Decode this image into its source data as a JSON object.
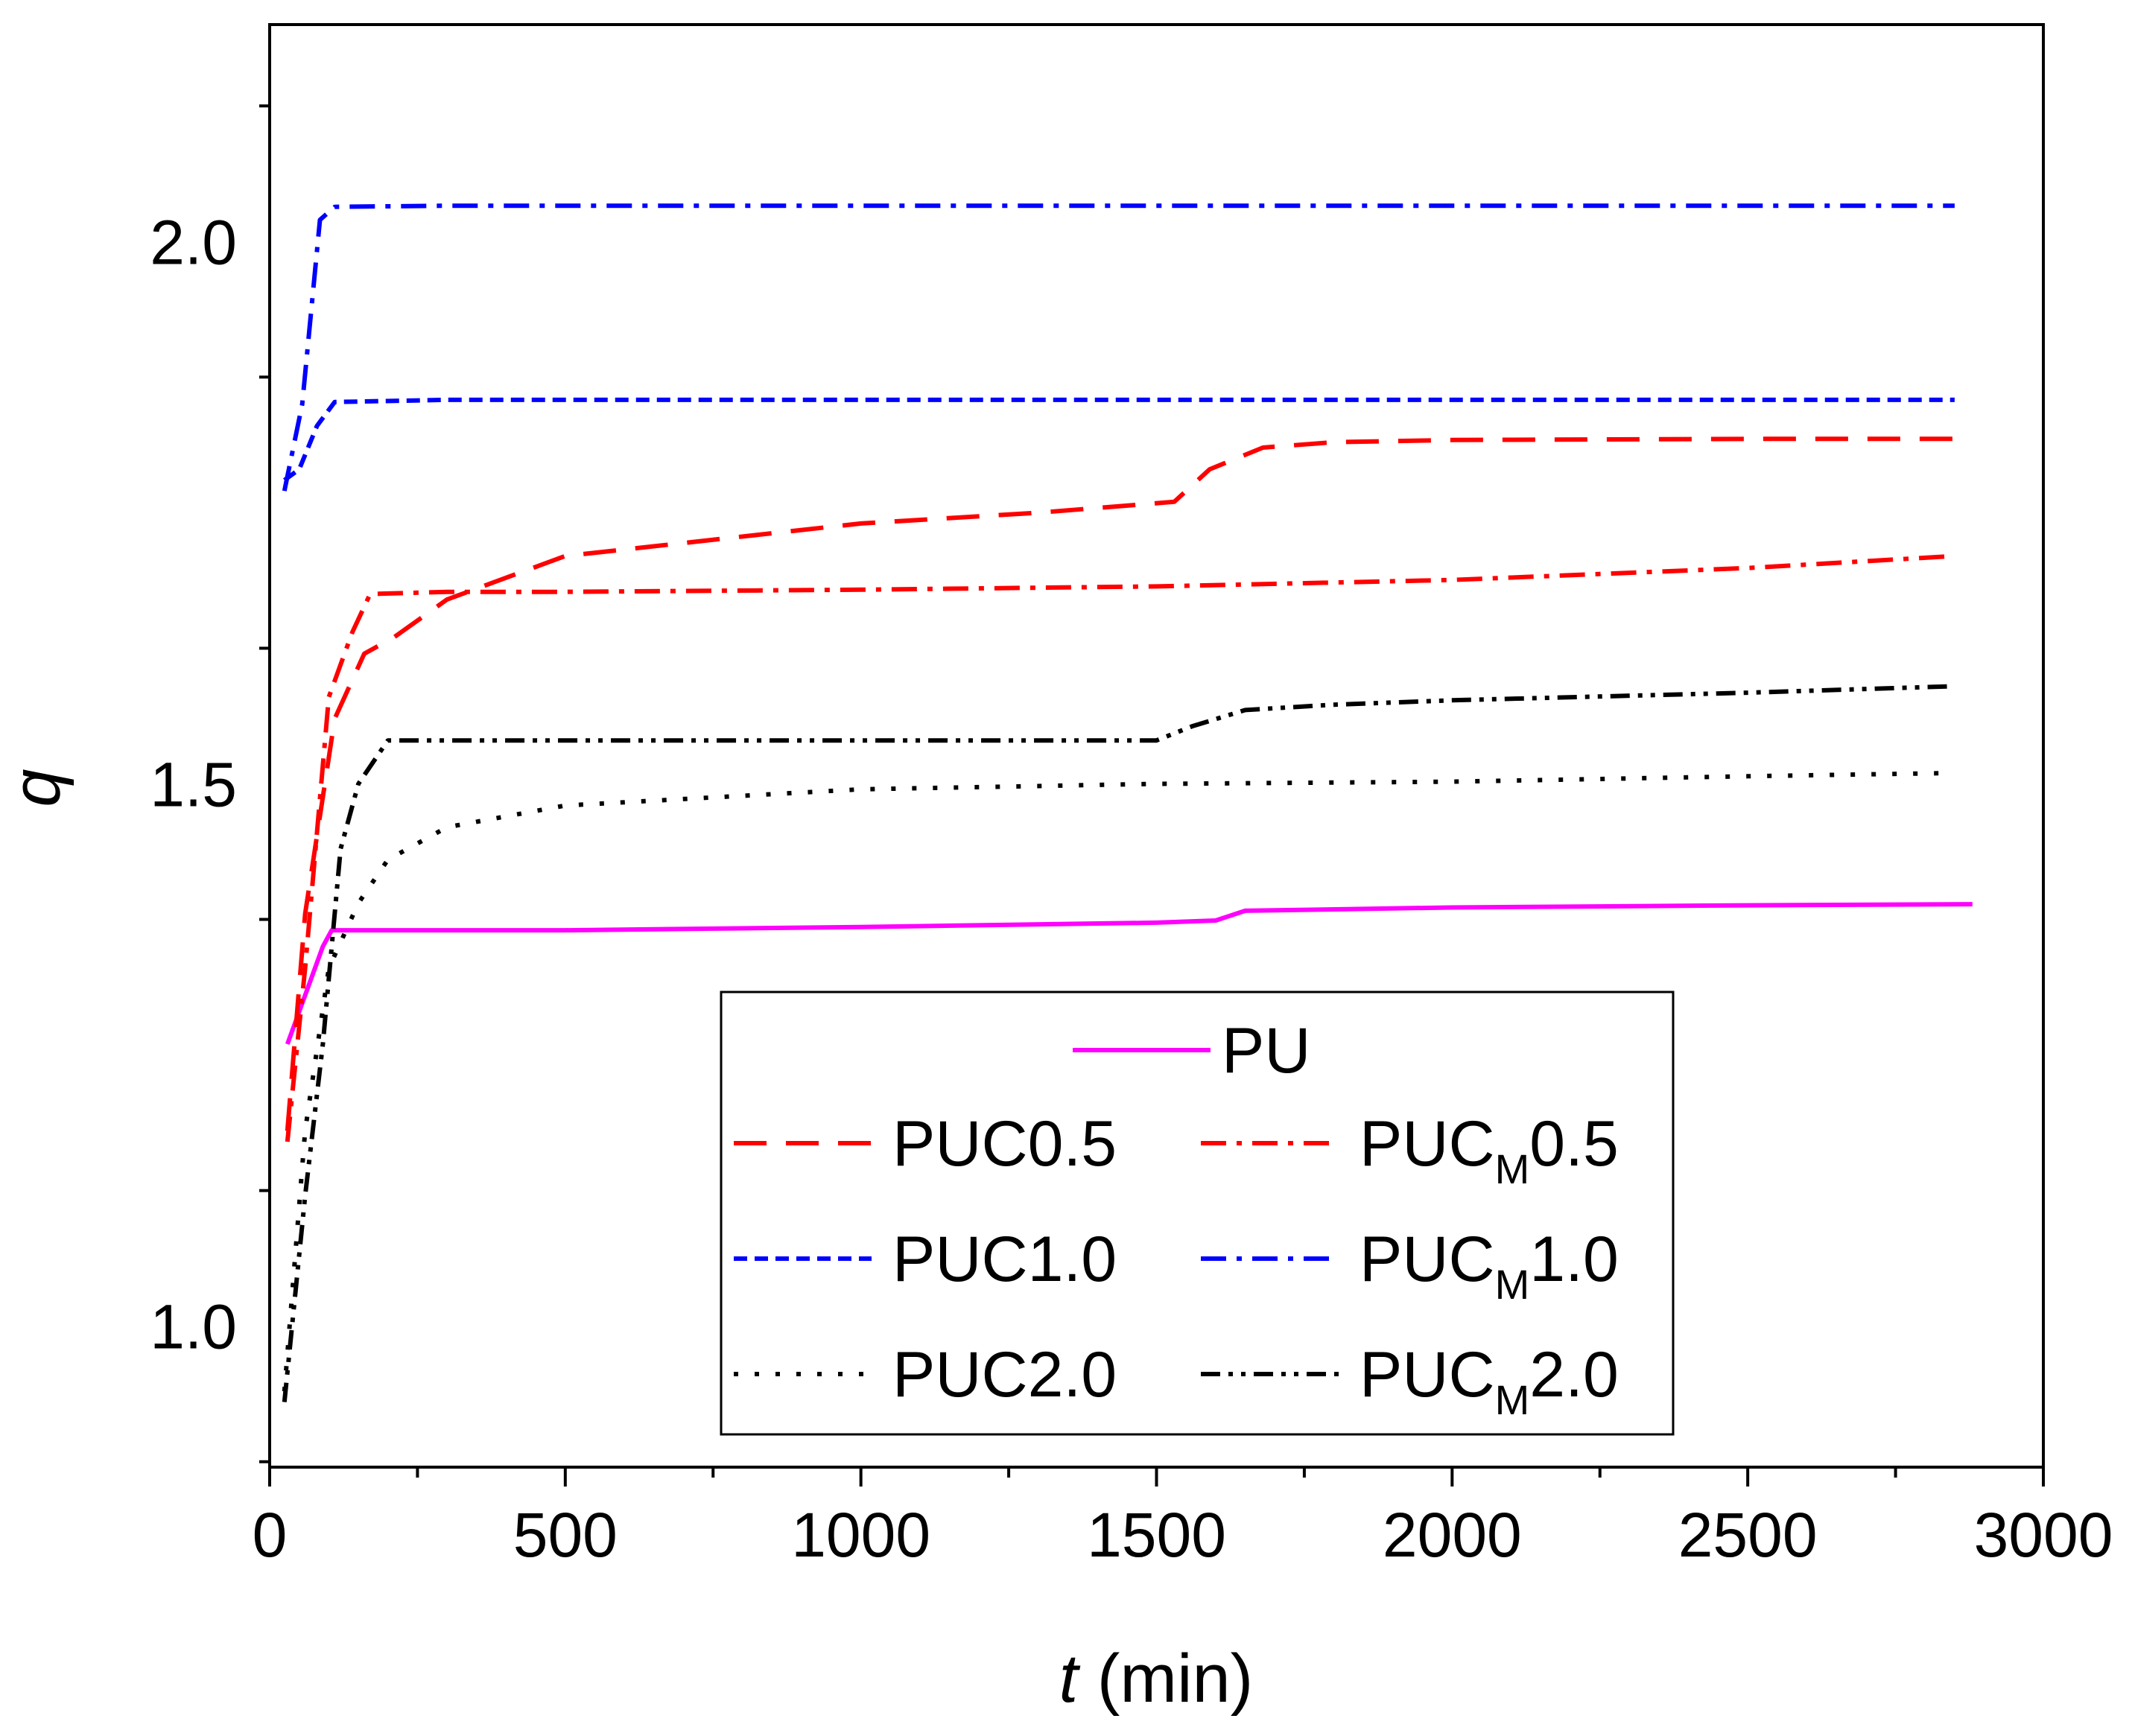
{
  "chart_data": {
    "type": "line",
    "title": "",
    "xlabel_var": "t",
    "xlabel_unit": " (min)",
    "ylabel": "q",
    "xlim": [
      0,
      3000
    ],
    "ylim": [
      0.87,
      2.2
    ],
    "xticks": [
      0,
      500,
      1000,
      1500,
      2000,
      2500,
      3000
    ],
    "xtick_labels": [
      "0",
      "500",
      "1000",
      "1500",
      "2000",
      "2500",
      "3000"
    ],
    "yticks": [
      1.0,
      1.5,
      2.0
    ],
    "ytick_labels": [
      "1.0",
      "1.5",
      "2.0"
    ],
    "legend": {
      "placement": "bottom-center",
      "entries": [
        {
          "series": "PU",
          "label": "PU",
          "sub": "",
          "suffix": ""
        },
        {
          "series": "PUC0.5",
          "label": "PUC0.5",
          "sub": "",
          "suffix": ""
        },
        {
          "series": "PUCM0.5",
          "label": "PUC",
          "sub": "M",
          "suffix": "0.5"
        },
        {
          "series": "PUC1.0",
          "label": "PUC1.0",
          "sub": "",
          "suffix": ""
        },
        {
          "series": "PUCM1.0",
          "label": "PUC",
          "sub": "M",
          "suffix": "1.0"
        },
        {
          "series": "PUC2.0",
          "label": "PUC2.0",
          "sub": "",
          "suffix": ""
        },
        {
          "series": "PUCM2.0",
          "label": "PUC",
          "sub": "M",
          "suffix": "2.0"
        }
      ]
    },
    "series": [
      {
        "name": "PU",
        "color": "#ff00ff",
        "style": "solid",
        "x": [
          30,
          90,
          105,
          500,
          1000,
          1500,
          1600,
          1650,
          2000,
          2500,
          2880
        ],
        "y": [
          1.26,
          1.35,
          1.365,
          1.365,
          1.368,
          1.372,
          1.374,
          1.383,
          1.386,
          1.388,
          1.389
        ]
      },
      {
        "name": "PUC0.5",
        "color": "#ff0000",
        "style": "dash",
        "x": [
          30,
          60,
          110,
          160,
          210,
          300,
          500,
          1000,
          1300,
          1530,
          1590,
          1680,
          1800,
          2000,
          2500,
          2850
        ],
        "y": [
          1.18,
          1.38,
          1.56,
          1.62,
          1.635,
          1.67,
          1.71,
          1.74,
          1.75,
          1.76,
          1.79,
          1.81,
          1.815,
          1.817,
          1.818,
          1.818
        ]
      },
      {
        "name": "PUCM0.5",
        "color": "#ff0000",
        "style": "dashdot",
        "x": [
          30,
          60,
          100,
          140,
          170,
          300,
          500,
          1000,
          1500,
          2000,
          2500,
          2850
        ],
        "y": [
          1.17,
          1.33,
          1.58,
          1.64,
          1.675,
          1.677,
          1.677,
          1.679,
          1.682,
          1.688,
          1.699,
          1.71
        ]
      },
      {
        "name": "PUC1.0",
        "color": "#0000ff",
        "style": "shortdash",
        "x": [
          25,
          50,
          80,
          110,
          300,
          1000,
          1500,
          2000,
          2500,
          2850
        ],
        "y": [
          1.78,
          1.79,
          1.83,
          1.852,
          1.854,
          1.854,
          1.854,
          1.854,
          1.854,
          1.854
        ]
      },
      {
        "name": "PUCM1.0",
        "color": "#0000ff",
        "style": "dashdot",
        "x": [
          25,
          55,
          85,
          110,
          300,
          1000,
          1500,
          2000,
          2500,
          2850
        ],
        "y": [
          1.77,
          1.85,
          2.02,
          2.032,
          2.033,
          2.033,
          2.033,
          2.033,
          2.033,
          2.033
        ]
      },
      {
        "name": "PUC2.0",
        "color": "#000000",
        "style": "dot",
        "x": [
          25,
          60,
          100,
          150,
          200,
          300,
          500,
          1000,
          1500,
          2000,
          2500,
          2850
        ],
        "y": [
          0.94,
          1.18,
          1.33,
          1.39,
          1.43,
          1.46,
          1.48,
          1.495,
          1.5,
          1.502,
          1.507,
          1.51
        ]
      },
      {
        "name": "PUCM2.0",
        "color": "#000000",
        "style": "dashdotdot",
        "x": [
          25,
          60,
          90,
          120,
          150,
          200,
          500,
          1000,
          1500,
          1560,
          1650,
          1800,
          2000,
          2500,
          2850
        ],
        "y": [
          0.93,
          1.12,
          1.26,
          1.44,
          1.5,
          1.54,
          1.54,
          1.54,
          1.54,
          1.553,
          1.568,
          1.573,
          1.577,
          1.584,
          1.59
        ]
      }
    ]
  }
}
